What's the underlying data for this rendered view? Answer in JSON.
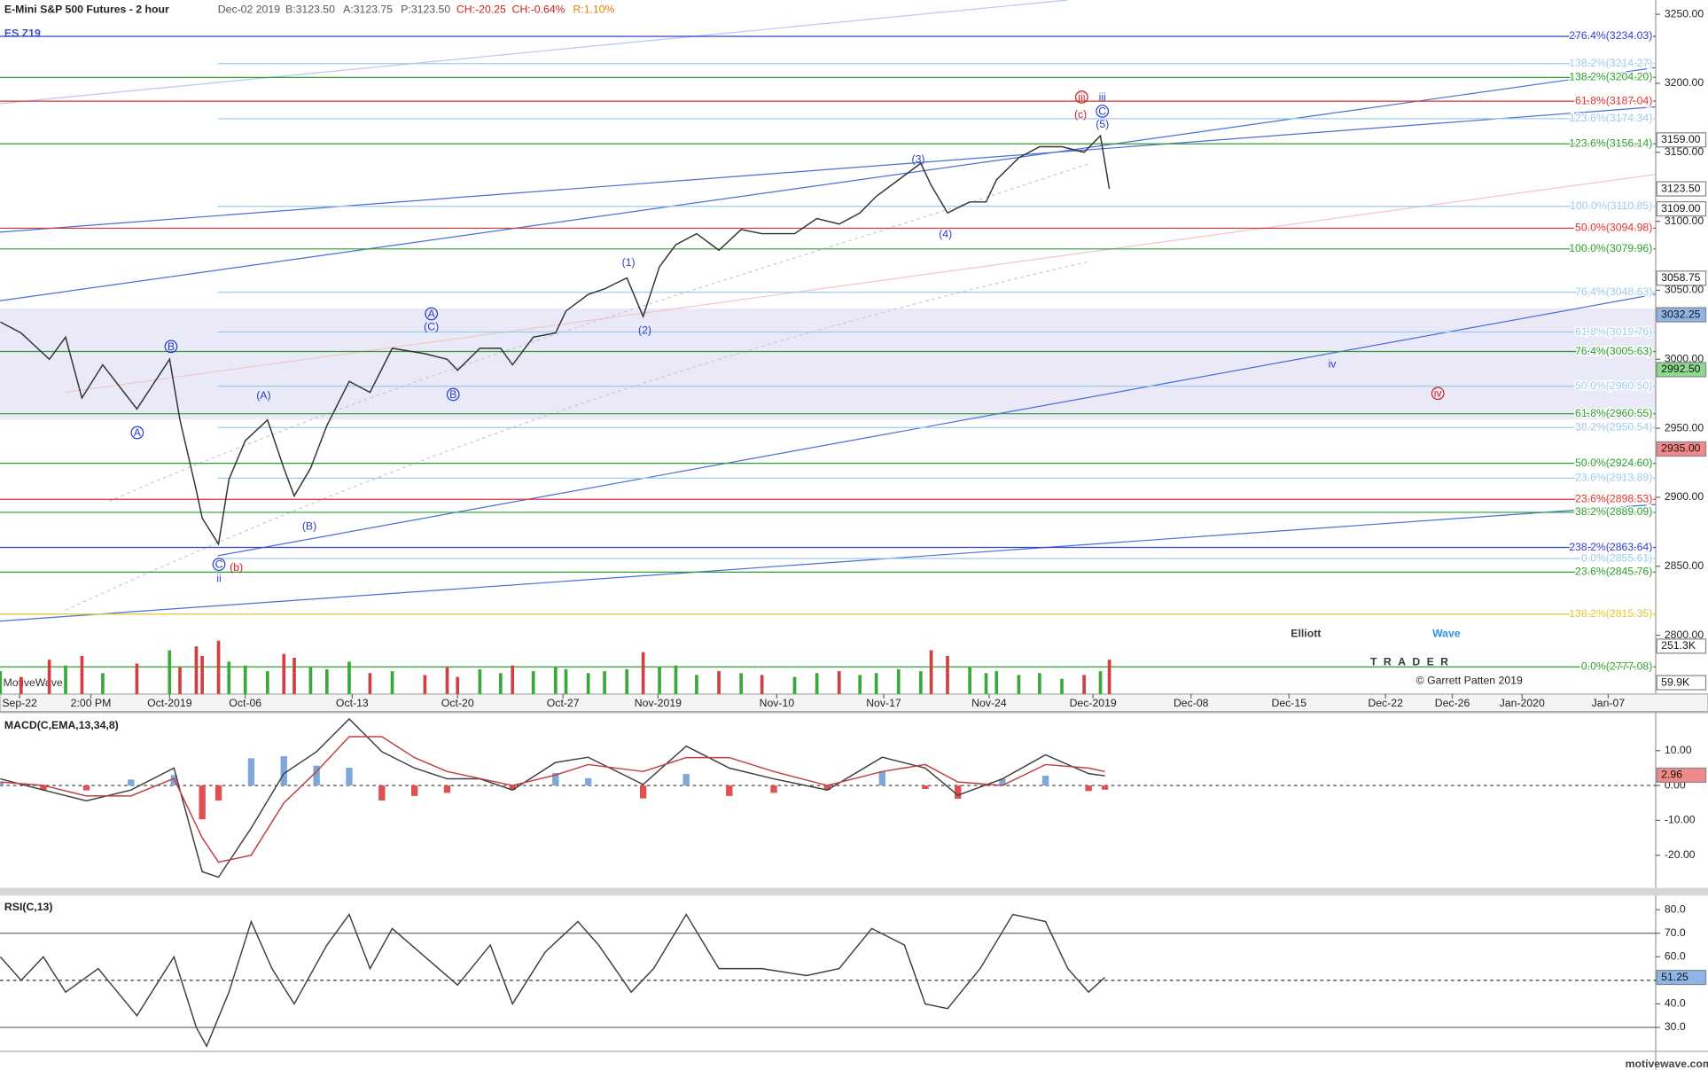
{
  "header": {
    "title": "E-Mini S&P 500 Futures - 2 hour",
    "date": "Dec-02 2019",
    "bid": "B:3123.50",
    "ask": "A:3123.75",
    "price": "P:3123.50",
    "change": "CH:-20.25",
    "change_pct": "CH:-0.64%",
    "range": "R:1.10%",
    "symbol": "ES Z19"
  },
  "footer": {
    "brand": "MotiveWave",
    "copyright": "© Garrett Patten 2019",
    "site": "motivewave.com",
    "logo_a": "Elliott",
    "logo_b": "Wave",
    "logo_c": "TRADER"
  },
  "annotations": [
    "A",
    "(C)",
    "B",
    "A",
    "(A)",
    "(B)",
    "C",
    "(b)",
    "ii",
    "B",
    "(1)",
    "(2)",
    "(3)",
    "(4)",
    "(5)",
    "C",
    "iii",
    "iii",
    "(c)",
    "iv",
    "iv"
  ],
  "chart_data": [
    {
      "type": "line",
      "x": [
        -1.3,
        0.1,
        2.0,
        3.1,
        4.2,
        5.6,
        7.9,
        10.1,
        10.8,
        11.9,
        12.3,
        13.4,
        14.1,
        15.2,
        16.7,
        17.8,
        18.5,
        19.6,
        20.7,
        22.2,
        23.6,
        25.1,
        27.3,
        28.8,
        29.5,
        31.0,
        32.4,
        33.2,
        34.6,
        36.1,
        36.8,
        38.3,
        39.4,
        40.9,
        42.0,
        43.1,
        44.2,
        45.6,
        47.1,
        48.6,
        50.0,
        52.2,
        53.7,
        55.2,
        56.6,
        57.7,
        59.2,
        60.7,
        61.4,
        62.5,
        64.0,
        65.1,
        65.8,
        67.3,
        68.7,
        70.2,
        71.7,
        72.8,
        73.4
      ],
      "series": [
        {
          "color": "#333333",
          "values": [
            3027,
            3019,
            3000,
            3016,
            2972,
            2996,
            2964,
            3000,
            2956,
            2905,
            2885,
            2866,
            2913,
            2941,
            2956,
            2921,
            2901,
            2921,
            2952,
            2984,
            2976,
            3008,
            3004,
            3000,
            2992,
            3008,
            3008,
            2996,
            3016,
            3019,
            3035,
            3047,
            3051,
            3059,
            3031,
            3067,
            3083,
            3091,
            3079,
            3094,
            3091,
            3091,
            3102,
            3098,
            3106,
            3118,
            3130,
            3142,
            3126,
            3106,
            3114,
            3114,
            3130,
            3146,
            3154,
            3154,
            3150,
            3162,
            3123.5
          ]
        }
      ],
      "xlim": [
        -1.32,
        110.2
      ],
      "xticks": [
        {
          "value": 0,
          "label": "Sep-22"
        },
        {
          "value": 4.8,
          "label": "2:00 PM"
        },
        {
          "value": 10.1,
          "label": "Oct-2019"
        },
        {
          "value": 15.2,
          "label": "Oct-06"
        },
        {
          "value": 22.4,
          "label": "Oct-13"
        },
        {
          "value": 29.5,
          "label": "Oct-20"
        },
        {
          "value": 36.6,
          "label": "Oct-27"
        },
        {
          "value": 43,
          "label": "Nov-2019"
        },
        {
          "value": 51,
          "label": "Nov-10"
        },
        {
          "value": 58.2,
          "label": "Nov-17"
        },
        {
          "value": 65.3,
          "label": "Nov-24"
        },
        {
          "value": 72.3,
          "label": "Dec-2019"
        },
        {
          "value": 78.9,
          "label": "Dec-08"
        },
        {
          "value": 85.5,
          "label": "Dec-15"
        },
        {
          "value": 92,
          "label": "Dec-22"
        },
        {
          "value": 96.5,
          "label": "Dec-26"
        },
        {
          "value": 101.2,
          "label": "Jan-2020"
        },
        {
          "value": 107,
          "label": "Jan-07"
        }
      ],
      "ylim": [
        2757.4,
        3260.3
      ],
      "yticks": [
        {
          "value": 2800,
          "label": "2800.00"
        },
        {
          "value": 2850,
          "label": "2850.00"
        },
        {
          "value": 2900,
          "label": "2900.00"
        },
        {
          "value": 2950,
          "label": "2950.00"
        },
        {
          "value": 3000,
          "label": "3000.00"
        },
        {
          "value": 3050,
          "label": "3050.00"
        },
        {
          "value": 3100,
          "label": "3100.00"
        },
        {
          "value": 3150,
          "label": "3150.00"
        },
        {
          "value": 3200,
          "label": "3200.00"
        },
        {
          "value": 3250,
          "label": "3250.00"
        }
      ],
      "levels": [
        {
          "value": 3234.03,
          "label": "276.4%(3234.03)",
          "color": "#3340c8"
        },
        {
          "value": 3214.27,
          "label": "138.2%(3214.27)",
          "color": "#9ccbeb"
        },
        {
          "value": 3204.2,
          "label": "138.2%(3204.20)",
          "color": "#2e9e2e"
        },
        {
          "value": 3187.04,
          "label": "61.8%(3187.04)",
          "color": "#e03030"
        },
        {
          "value": 3174.34,
          "label": "123.6%(3174.34)",
          "color": "#9ccbeb"
        },
        {
          "value": 3156.14,
          "label": "123.6%(3156.14)",
          "color": "#2e9e2e"
        },
        {
          "value": 3110.85,
          "label": "100.0%(3110.85)",
          "color": "#9ccbeb"
        },
        {
          "value": 3094.98,
          "label": "50.0%(3094.98)",
          "color": "#e03030"
        },
        {
          "value": 3079.96,
          "label": "100.0%(3079.96)",
          "color": "#2e9e2e"
        },
        {
          "value": 3048.63,
          "label": "76.4%(3048.63)",
          "color": "#9ccbeb"
        },
        {
          "value": 3019.76,
          "label": "61.8%(3019.76)",
          "color": "#9ccbeb"
        },
        {
          "value": 3005.63,
          "label": "76.4%(3005.63)",
          "color": "#2e9e2e"
        },
        {
          "value": 2980.5,
          "label": "50.0%(2980.50)",
          "color": "#9ccbeb"
        },
        {
          "value": 2960.55,
          "label": "61.8%(2960.55)",
          "color": "#2e9e2e"
        },
        {
          "value": 2950.54,
          "label": "38.2%(2950.54)",
          "color": "#9ccbeb"
        },
        {
          "value": 2924.6,
          "label": "50.0%(2924.60)",
          "color": "#2e9e2e"
        },
        {
          "value": 2913.89,
          "label": "23.6%(2913.89)",
          "color": "#9ccbeb"
        },
        {
          "value": 2898.53,
          "label": "23.6%(2898.53)",
          "color": "#e03030"
        },
        {
          "value": 2889.09,
          "label": "38.2%(2889.09)",
          "color": "#2e9e2e"
        },
        {
          "value": 2863.64,
          "label": "238.2%(2863.64)",
          "color": "#3340c8"
        },
        {
          "value": 2855.61,
          "label": "0.0%(2855.61)",
          "color": "#9ccbeb"
        },
        {
          "value": 2845.76,
          "label": "23.6%(2845.76)",
          "color": "#2e9e2e"
        },
        {
          "value": 2815.35,
          "label": "138.2%(2815.35)",
          "color": "#e0c830"
        },
        {
          "value": 2777.08,
          "label": "0.0%(2777.08)",
          "color": "#2e9e2e"
        }
      ],
      "tags": [
        {
          "value": 3159,
          "label": "3159.00",
          "color": "#ffffff"
        },
        {
          "value": 3123.5,
          "label": "3123.50",
          "color": "#ffffff"
        },
        {
          "value": 3109,
          "label": "3109.00",
          "color": "#ffffff"
        },
        {
          "value": 3058.75,
          "label": "3058.75",
          "color": "#ffffff"
        },
        {
          "value": 3032.25,
          "label": "3032.25",
          "color": "#8fb4e8"
        },
        {
          "value": 2992.5,
          "label": "2992.50",
          "color": "#8fd88f"
        },
        {
          "value": 2935,
          "label": "2935.00",
          "color": "#f08a8a"
        }
      ],
      "volume": {
        "values": [
          120,
          90,
          180,
          150,
          200,
          110,
          160,
          230,
          140,
          250,
          200,
          280,
          170,
          150,
          120,
          210,
          190,
          140,
          130,
          170,
          110,
          120,
          100,
          140,
          90,
          130,
          110,
          150,
          120,
          140,
          130,
          110,
          120,
          130,
          220,
          140,
          150,
          100,
          120,
          110,
          100,
          90,
          110,
          120,
          100,
          110,
          130,
          120,
          230,
          200,
          140,
          110,
          120,
          100,
          110,
          80,
          100,
          120,
          180
        ],
        "ylim": [
          0,
          440
        ],
        "colors": [
          "#3aa83a",
          "#d04040"
        ],
        "tags": [
          {
            "value": 251.3,
            "label": "251.3K"
          },
          {
            "value": 59.9,
            "label": "59.9K"
          }
        ]
      }
    },
    {
      "type": "line",
      "title": "MACD(C,EMA,13,34,8)",
      "x": [
        -1.3,
        1.6,
        4.5,
        7.5,
        10.4,
        12.3,
        13.4,
        15.6,
        17.8,
        20.0,
        22.2,
        24.4,
        26.6,
        28.8,
        31.0,
        33.2,
        36.1,
        38.3,
        42.0,
        44.9,
        47.8,
        50.8,
        54.4,
        58.1,
        61.0,
        63.2,
        66.2,
        69.1,
        72.0,
        73.1
      ],
      "series": [
        {
          "type": "bar",
          "colors": [
            "#7fa8d8",
            "#e05050"
          ],
          "values": [
            0.9,
            -1.3,
            -1.4,
            1.7,
            3,
            -9.7,
            -4.3,
            7.8,
            8.4,
            5.7,
            5.1,
            -4.3,
            -3,
            -2.1,
            -0.1,
            -1.3,
            3.6,
            2.1,
            -3.7,
            3.3,
            -3,
            -2.1,
            -1.3,
            4.1,
            -1,
            -3.8,
            1.9,
            2.8,
            -1.6,
            -1.2
          ]
        },
        {
          "type": "line",
          "color": "#404040",
          "values": [
            1.9,
            -1.3,
            -4.4,
            -1.3,
            5,
            -24.7,
            -26.3,
            -12.2,
            3.4,
            9.7,
            19.1,
            9.7,
            5,
            1.9,
            1.9,
            -1.3,
            6.6,
            8.1,
            0.3,
            11.3,
            5,
            1.9,
            -1.3,
            8.1,
            5,
            -2.8,
            1.9,
            8.8,
            3.4,
            2.8
          ]
        },
        {
          "type": "line",
          "color": "#c04040",
          "values": [
            1,
            0,
            -3,
            -3,
            2,
            -15,
            -22,
            -20,
            -5,
            4,
            14,
            14,
            8,
            4,
            2,
            0,
            3,
            6,
            4,
            8,
            8,
            4,
            0,
            4,
            6,
            1,
            0,
            6,
            5,
            4
          ]
        }
      ],
      "xlim": [
        -1.32,
        110.2
      ],
      "ylim": [
        -29.4,
        20.6
      ],
      "yticks": [
        {
          "value": -20,
          "label": "-20.00"
        },
        {
          "value": -10,
          "label": "-10.00"
        },
        {
          "value": 0,
          "label": "0.00"
        },
        {
          "value": 10,
          "label": "10.00"
        }
      ],
      "guides": [
        {
          "value": 0,
          "dashed": true
        }
      ],
      "tags": [
        {
          "value": 2.96,
          "label": "2.96",
          "color": "#f08a8a"
        }
      ]
    },
    {
      "type": "line",
      "title": "RSI(C,13)",
      "x": [
        -1.3,
        0.1,
        1.6,
        3.1,
        5.3,
        7.9,
        10.4,
        11.9,
        12.6,
        14.1,
        15.6,
        17.0,
        18.5,
        20.7,
        22.2,
        23.6,
        25.1,
        27.3,
        29.5,
        31.7,
        33.2,
        35.4,
        37.6,
        39.0,
        41.2,
        42.7,
        44.9,
        47.1,
        50.0,
        53.0,
        55.2,
        57.4,
        59.6,
        61.0,
        62.5,
        64.7,
        66.9,
        69.1,
        70.6,
        72.0,
        73.1
      ],
      "series": [
        {
          "type": "line",
          "color": "#404040",
          "values": [
            60,
            50,
            60,
            45,
            55,
            35,
            60,
            30,
            22,
            45,
            75,
            55,
            40,
            65,
            78,
            55,
            72,
            60,
            48,
            65,
            40,
            62,
            75,
            65,
            45,
            55,
            78,
            55,
            55,
            52,
            55,
            72,
            65,
            40,
            38,
            55,
            78,
            75,
            55,
            45,
            51.25
          ]
        }
      ],
      "xlim": [
        -1.32,
        110.2
      ],
      "ylim": [
        19.8,
        86
      ],
      "yticks": [
        {
          "value": 30,
          "label": "30.0"
        },
        {
          "value": 40,
          "label": "40.0"
        },
        {
          "value": 50,
          "label": "50.0"
        },
        {
          "value": 60,
          "label": "60.0"
        },
        {
          "value": 70,
          "label": "70.0"
        },
        {
          "value": 80,
          "label": "80.0"
        }
      ],
      "guides": [
        {
          "value": 70,
          "dashed": false
        },
        {
          "value": 50,
          "dashed": true
        },
        {
          "value": 30,
          "dashed": false
        }
      ],
      "tags": [
        {
          "value": 51.25,
          "label": "51.25",
          "color": "#8fb4e8"
        }
      ]
    }
  ]
}
